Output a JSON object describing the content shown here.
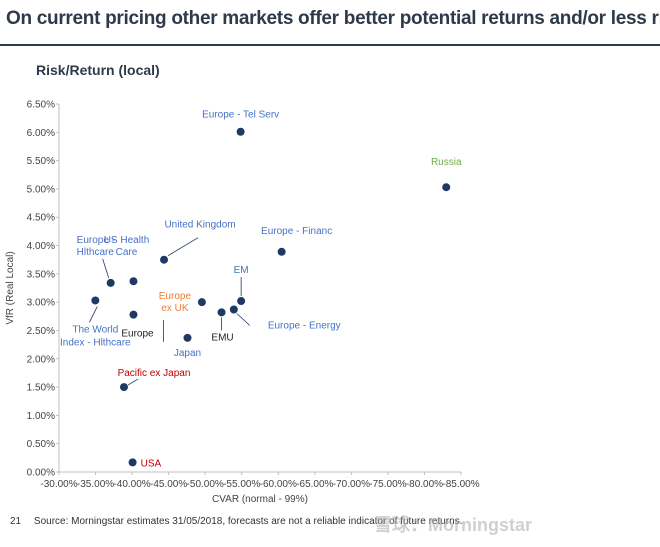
{
  "title": "On current pricing other markets offer better potential returns and/or less risk",
  "subtitle": "Risk/Return (local)",
  "footer": {
    "page": "21",
    "source": "Source: Morningstar estimates 31/05/2018, forecasts are not a reliable indicator of future returns."
  },
  "watermark": "雪球：Morningstar",
  "colors": {
    "point": "#1f3864",
    "label_default": "#4472c4",
    "label_dark": "#222222",
    "label_orange": "#ed7d31",
    "label_red": "#c00000",
    "label_green": "#70ad47",
    "leader": "#1f3864",
    "axis": "#bfbfbf"
  },
  "chart_data": {
    "type": "scatter",
    "xlabel": "CVAR (normal - 99%)",
    "ylabel": "VfR (Real Local)",
    "xlim": [
      -0.3,
      -0.85
    ],
    "ylim": [
      0.0,
      0.065
    ],
    "x_ticks": [
      "-30.00%",
      "-35.00%",
      "-40.00%",
      "-45.00%",
      "-50.00%",
      "-55.00%",
      "-60.00%",
      "-65.00%",
      "-70.00%",
      "-75.00%",
      "-80.00%",
      "-85.00%"
    ],
    "y_ticks": [
      "0.00%",
      "0.50%",
      "1.00%",
      "1.50%",
      "2.00%",
      "2.50%",
      "3.00%",
      "3.50%",
      "4.00%",
      "4.50%",
      "5.00%",
      "5.50%",
      "6.00%",
      "6.50%"
    ],
    "grid": false,
    "points": [
      {
        "label": "Europe - Tel Serv",
        "x": -0.5485,
        "y": 0.0601,
        "color": "label_default"
      },
      {
        "label": "Russia",
        "x": -0.8298,
        "y": 0.0503,
        "color": "label_green"
      },
      {
        "label": "Europe - Financ",
        "x": -0.6046,
        "y": 0.0389,
        "color": "label_default"
      },
      {
        "label": "United Kingdom",
        "x": -0.4437,
        "y": 0.0375,
        "color": "label_default"
      },
      {
        "label": "Europe - Hlthcare",
        "x": -0.3707,
        "y": 0.0334,
        "color": "label_default"
      },
      {
        "label": "US Health Care",
        "x": -0.4019,
        "y": 0.0337,
        "color": "label_default"
      },
      {
        "label": "The World Index - Hlthcare",
        "x": -0.3497,
        "y": 0.0303,
        "color": "label_default"
      },
      {
        "label": "Europe ex UK",
        "x": -0.4955,
        "y": 0.03,
        "color": "label_orange"
      },
      {
        "label": "EM",
        "x": -0.5492,
        "y": 0.0302,
        "color": "label_default"
      },
      {
        "label": "Europe",
        "x": -0.4019,
        "y": 0.0278,
        "color": "label_dark"
      },
      {
        "label": "EMU",
        "x": -0.5224,
        "y": 0.0282,
        "color": "label_dark"
      },
      {
        "label": "Europe - Energy",
        "x": -0.5392,
        "y": 0.0287,
        "color": "label_default"
      },
      {
        "label": "Japan",
        "x": -0.4758,
        "y": 0.0237,
        "color": "label_default"
      },
      {
        "label": "Pacific ex Japan",
        "x": -0.3889,
        "y": 0.015,
        "color": "label_red"
      },
      {
        "label": "USA",
        "x": -0.4007,
        "y": 0.0017,
        "color": "label_red"
      }
    ]
  }
}
